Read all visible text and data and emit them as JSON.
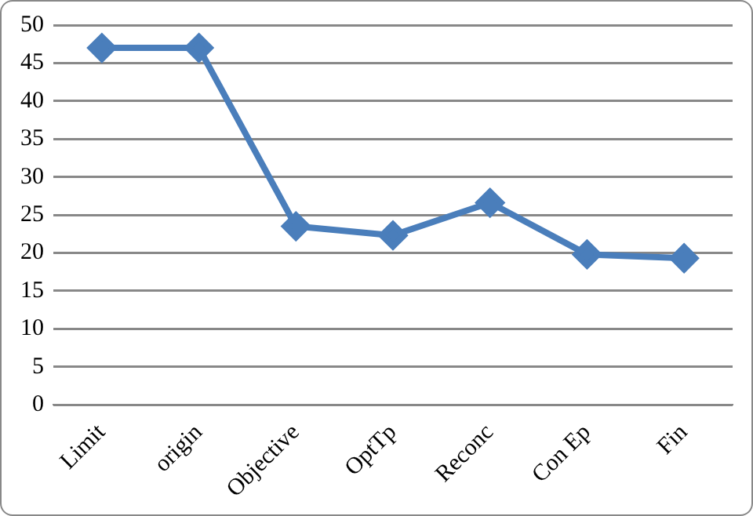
{
  "chart_data": {
    "type": "line",
    "categories": [
      "Limit",
      "origin",
      "Objective",
      "OptTp",
      "Reconc",
      "Con Ep",
      "Fin"
    ],
    "series": [
      {
        "color": "#4a7ebb",
        "values": [
          47,
          47,
          23.5,
          22.3,
          26.6,
          19.8,
          19.3
        ]
      }
    ],
    "ylim": [
      0,
      50
    ],
    "yticks": [
      0,
      5,
      10,
      15,
      20,
      25,
      30,
      35,
      40,
      45,
      50
    ],
    "grid": "y",
    "legend": false,
    "marker": "diamond",
    "line_style": "solid"
  }
}
